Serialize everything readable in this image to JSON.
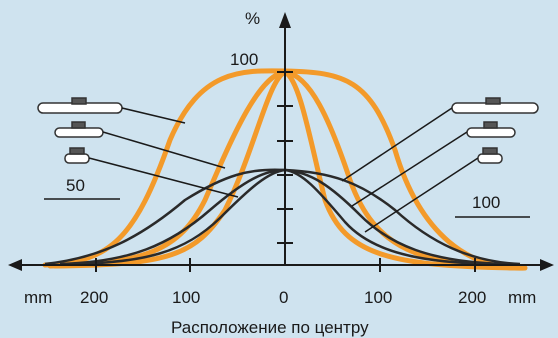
{
  "y_unit": "%",
  "x_unit_left": "mm",
  "x_unit_right": "mm",
  "caption": "Расположение по центру",
  "x_ticks": [
    "200",
    "100",
    "0",
    "100",
    "200"
  ],
  "y_label_100": "100",
  "left_callout_label": "50",
  "right_callout_label": "100",
  "colors": {
    "background": "#cfe3ef",
    "orange": "#f39a2a",
    "dark": "#2a2a2a"
  },
  "icons": [
    "dome-pad-large-icon",
    "dome-pad-medium-icon",
    "dome-pad-small-icon"
  ]
}
